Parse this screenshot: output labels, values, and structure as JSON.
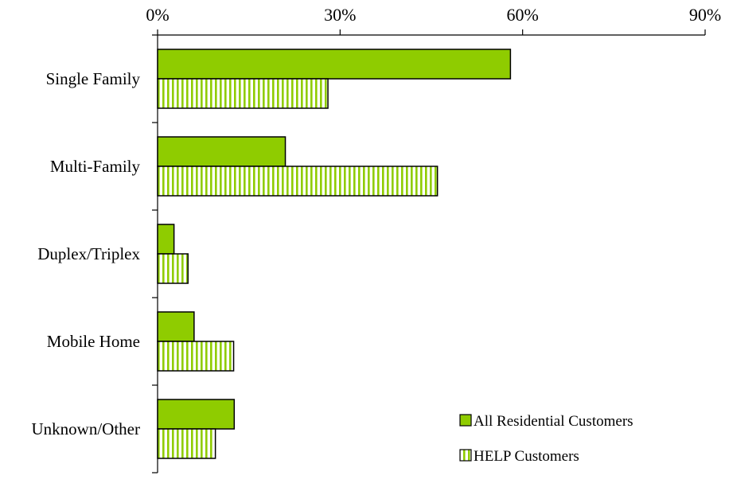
{
  "chart_data": {
    "type": "bar",
    "orientation": "horizontal",
    "categories": [
      "Single Family",
      "Multi-Family",
      "Duplex/Triplex",
      "Mobile Home",
      "Unknown/Other"
    ],
    "series": [
      {
        "name": "All Residential Customers",
        "values": [
          58,
          21,
          2.7,
          6,
          12.6
        ],
        "color": "#8fcc00",
        "pattern": "solid"
      },
      {
        "name": "HELP Customers",
        "values": [
          28,
          46,
          5,
          12.5,
          9.5
        ],
        "color": "#8fcc00",
        "pattern": "vertical-stripes"
      }
    ],
    "x_ticks": [
      "0%",
      "30%",
      "60%",
      "90%"
    ],
    "xlim": [
      0,
      90
    ],
    "x_axis_position": "top",
    "legend_position": "bottom-right",
    "grid": false
  }
}
